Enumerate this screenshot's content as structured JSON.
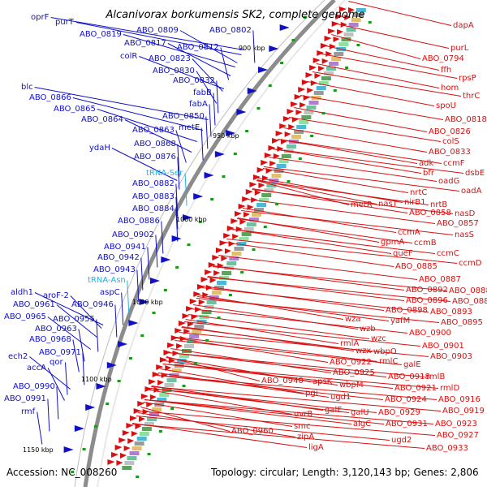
{
  "title": "Alcanivorax borkumensis SK2, complete genome",
  "footer": {
    "accession": "Accession: NC_008260",
    "topology": "Topology: circular; Length: 3,120,143 bp; Genes: 2,806"
  },
  "ticks": [
    {
      "label": "900 kbp"
    },
    {
      "label": "950 kbp"
    },
    {
      "label": "1000 kbp"
    },
    {
      "label": "1050 kbp"
    },
    {
      "label": "1100 kbp"
    },
    {
      "label": "1150 kbp"
    }
  ],
  "colors": {
    "reverse_strand": "#1010c8",
    "forward_strand": "#d81010",
    "rna": "#20b4e0",
    "backbone": "#8c8c8c"
  },
  "left_labels": [
    {
      "text": "oprF",
      "rna": false
    },
    {
      "text": "purT",
      "rna": false
    },
    {
      "text": "ABO_0819",
      "rna": false
    },
    {
      "text": "ABO_0809",
      "rna": false
    },
    {
      "text": "ABO_0802",
      "rna": false
    },
    {
      "text": "ABO_0817",
      "rna": false
    },
    {
      "text": "ABO_0812",
      "rna": false
    },
    {
      "text": "colR",
      "rna": false
    },
    {
      "text": "ABO_0823",
      "rna": false
    },
    {
      "text": "ABO_0830",
      "rna": false
    },
    {
      "text": "ABO_0832",
      "rna": false
    },
    {
      "text": "blc",
      "rna": false
    },
    {
      "text": "fabB",
      "rna": false
    },
    {
      "text": "ABO_0866",
      "rna": false
    },
    {
      "text": "fabA",
      "rna": false
    },
    {
      "text": "ABO_0865",
      "rna": false
    },
    {
      "text": "ABO_0850",
      "rna": false
    },
    {
      "text": "ABO_0864",
      "rna": false
    },
    {
      "text": "metE",
      "rna": false
    },
    {
      "text": "ABO_0863",
      "rna": false
    },
    {
      "text": "ABO_0868",
      "rna": false
    },
    {
      "text": "ydaH",
      "rna": false
    },
    {
      "text": "ABO_0876",
      "rna": false
    },
    {
      "text": "tRNA-Ser",
      "rna": true
    },
    {
      "text": "ABO_0882",
      "rna": false
    },
    {
      "text": "ABO_0883",
      "rna": false
    },
    {
      "text": "ABO_0884",
      "rna": false
    },
    {
      "text": "ABO_0886",
      "rna": false
    },
    {
      "text": "ABO_0902",
      "rna": false
    },
    {
      "text": "ABO_0941",
      "rna": false
    },
    {
      "text": "ABO_0942",
      "rna": false
    },
    {
      "text": "ABO_0943",
      "rna": false
    },
    {
      "text": "tRNA-Asn",
      "rna": true
    },
    {
      "text": "aspC",
      "rna": false
    },
    {
      "text": "aldh1",
      "rna": false
    },
    {
      "text": "aroF-2",
      "rna": false
    },
    {
      "text": "ABO_0946",
      "rna": false
    },
    {
      "text": "ABO_0961",
      "rna": false
    },
    {
      "text": "ABO_0965",
      "rna": false
    },
    {
      "text": "ABO_0955",
      "rna": false
    },
    {
      "text": "ABO_0963",
      "rna": false
    },
    {
      "text": "ABO_0968",
      "rna": false
    },
    {
      "text": "ech2",
      "rna": false
    },
    {
      "text": "ABO_0971",
      "rna": false
    },
    {
      "text": "accA",
      "rna": false
    },
    {
      "text": "qor",
      "rna": false
    },
    {
      "text": "ABO_0990",
      "rna": false
    },
    {
      "text": "ABO_0991",
      "rna": false
    },
    {
      "text": "rmf",
      "rna": false
    }
  ],
  "right_labels": [
    {
      "text": "dapA"
    },
    {
      "text": "purL"
    },
    {
      "text": "ABO_0794"
    },
    {
      "text": "ffh"
    },
    {
      "text": "rpsP"
    },
    {
      "text": "hom"
    },
    {
      "text": "thrC"
    },
    {
      "text": "spoU"
    },
    {
      "text": "ABO_0818"
    },
    {
      "text": "ABO_0826"
    },
    {
      "text": "colS"
    },
    {
      "text": "ABO_0833"
    },
    {
      "text": "adk"
    },
    {
      "text": "ccmF"
    },
    {
      "text": "bfr"
    },
    {
      "text": "dsbE"
    },
    {
      "text": "oadG"
    },
    {
      "text": "oadA"
    },
    {
      "text": "nrtC"
    },
    {
      "text": "metR"
    },
    {
      "text": "nasT"
    },
    {
      "text": "nirB1"
    },
    {
      "text": "nrtB"
    },
    {
      "text": "ABO_0858"
    },
    {
      "text": "nasD"
    },
    {
      "text": "ABO_0857"
    },
    {
      "text": "nasS"
    },
    {
      "text": "ccmA"
    },
    {
      "text": "gpmA"
    },
    {
      "text": "ccmB"
    },
    {
      "text": "queF"
    },
    {
      "text": "ccmC"
    },
    {
      "text": "ccmD"
    },
    {
      "text": "ABO_0885"
    },
    {
      "text": "ABO_0887"
    },
    {
      "text": "ABO_0892"
    },
    {
      "text": "ABO_0888"
    },
    {
      "text": "ABO_0896"
    },
    {
      "text": "ABO_0889"
    },
    {
      "text": "ABO_0898"
    },
    {
      "text": "ABO_0893"
    },
    {
      "text": "yafM"
    },
    {
      "text": "ABO_0895"
    },
    {
      "text": "wza"
    },
    {
      "text": "wzb"
    },
    {
      "text": "ABO_0900"
    },
    {
      "text": "wzc"
    },
    {
      "text": "rmlA"
    },
    {
      "text": "wzx"
    },
    {
      "text": "ABO_0901"
    },
    {
      "text": "wbpO"
    },
    {
      "text": "ABO_0903"
    },
    {
      "text": "ABO_0922"
    },
    {
      "text": "rmlC"
    },
    {
      "text": "galE"
    },
    {
      "text": "ABO_0925"
    },
    {
      "text": "ABO_0918"
    },
    {
      "text": "rmlB"
    },
    {
      "text": "ABO_0940"
    },
    {
      "text": "apsK"
    },
    {
      "text": "wbpM"
    },
    {
      "text": "ABO_0921"
    },
    {
      "text": "rmlD"
    },
    {
      "text": "pgi"
    },
    {
      "text": "ugd1"
    },
    {
      "text": "ABO_0924"
    },
    {
      "text": "ABO_0916"
    },
    {
      "text": "galE"
    },
    {
      "text": "galU"
    },
    {
      "text": "ABO_0929"
    },
    {
      "text": "ABO_0919"
    },
    {
      "text": "uvrB"
    },
    {
      "text": "algC"
    },
    {
      "text": "ABO_0931"
    },
    {
      "text": "ABO_0923"
    },
    {
      "text": "smc"
    },
    {
      "text": "ABO_0960"
    },
    {
      "text": "ABO_0927"
    },
    {
      "text": "zipA"
    },
    {
      "text": "ugd2"
    },
    {
      "text": "ligA"
    },
    {
      "text": "ABO_0933"
    }
  ]
}
